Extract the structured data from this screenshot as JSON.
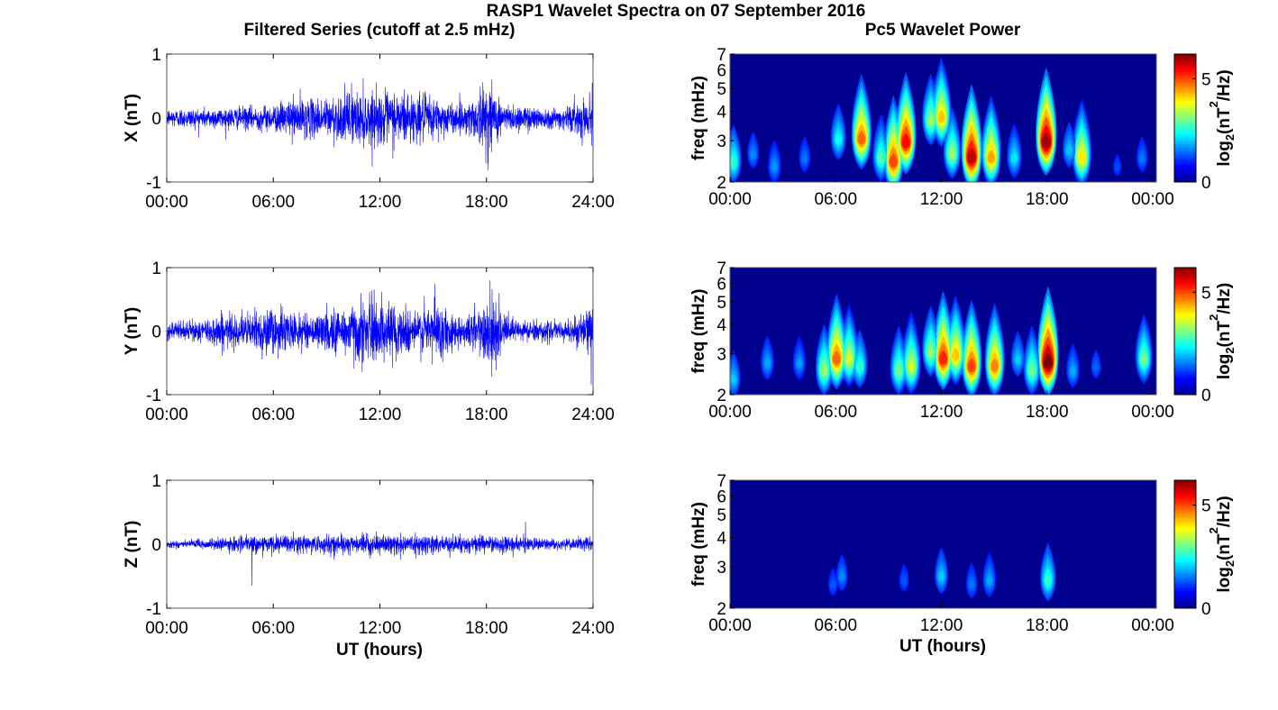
{
  "figure": {
    "title": "RASP1 Wavelet Spectra on 07 September 2016",
    "left_title": "Filtered Series (cutoff at 2.5 mHz)",
    "right_title": "Pc5 Wavelet Power",
    "xlabel": "UT (hours)"
  },
  "colors": {
    "series_line": "#0000ff",
    "spectrogram_background": "#00008f",
    "colormap": "jet"
  },
  "chart_data": [
    {
      "type": "line",
      "component": "X",
      "ylabel": "X (nT)",
      "xlim": [
        0,
        24
      ],
      "ylim": [
        -1,
        1
      ],
      "xticks": [
        "00:00",
        "06:00",
        "12:00",
        "18:00",
        "24:00"
      ],
      "yticks": [
        "-1",
        "0",
        "1"
      ],
      "envelope_hours": [
        0,
        2,
        4,
        6,
        7.5,
        8,
        9,
        10,
        11,
        12,
        13,
        14,
        15,
        16,
        17,
        18,
        19,
        20,
        22,
        24
      ],
      "envelope_nT": [
        0.13,
        0.14,
        0.15,
        0.18,
        0.3,
        0.25,
        0.28,
        0.33,
        0.38,
        0.34,
        0.4,
        0.33,
        0.3,
        0.2,
        0.22,
        0.5,
        0.2,
        0.18,
        0.13,
        0.3
      ],
      "peaks": [
        {
          "t": 10.4,
          "y": 0.55
        },
        {
          "t": 12.2,
          "y": -0.42
        },
        {
          "t": 18.3,
          "y": 0.6
        },
        {
          "t": 18.1,
          "y": -0.5
        },
        {
          "t": 23.95,
          "y": 0.55
        }
      ]
    },
    {
      "type": "line",
      "component": "Y",
      "ylabel": "Y (nT)",
      "xlim": [
        0,
        24
      ],
      "ylim": [
        -1,
        1
      ],
      "xticks": [
        "00:00",
        "06:00",
        "12:00",
        "18:00",
        "24:00"
      ],
      "yticks": [
        "-1",
        "0",
        "1"
      ],
      "envelope_hours": [
        0,
        2,
        3,
        4,
        5,
        6,
        7,
        8,
        9,
        10,
        11,
        12,
        13,
        14,
        15,
        16,
        17,
        18,
        19,
        20,
        22,
        24
      ],
      "envelope_nT": [
        0.12,
        0.15,
        0.25,
        0.2,
        0.28,
        0.35,
        0.25,
        0.2,
        0.28,
        0.35,
        0.45,
        0.4,
        0.35,
        0.3,
        0.42,
        0.25,
        0.22,
        0.5,
        0.22,
        0.16,
        0.12,
        0.3
      ],
      "peaks": [
        {
          "t": 12.1,
          "y": 0.62
        },
        {
          "t": 15.1,
          "y": 0.75
        },
        {
          "t": 18.2,
          "y": 0.8
        },
        {
          "t": 18.3,
          "y": -0.72
        },
        {
          "t": 23.9,
          "y": -0.85
        }
      ]
    },
    {
      "type": "line",
      "component": "Z",
      "ylabel": "Z (nT)",
      "xlim": [
        0,
        24
      ],
      "ylim": [
        -1,
        1
      ],
      "xticks": [
        "00:00",
        "06:00",
        "12:00",
        "18:00",
        "24:00"
      ],
      "yticks": [
        "-1",
        "0",
        "1"
      ],
      "envelope_hours": [
        0,
        2,
        4,
        6,
        8,
        10,
        12,
        14,
        16,
        18,
        20,
        22,
        24
      ],
      "envelope_nT": [
        0.05,
        0.07,
        0.1,
        0.12,
        0.12,
        0.13,
        0.12,
        0.13,
        0.12,
        0.12,
        0.1,
        0.07,
        0.1
      ],
      "peaks": [
        {
          "t": 4.8,
          "y": -0.65
        },
        {
          "t": 20.2,
          "y": 0.35
        },
        {
          "t": 24.0,
          "y": -0.12
        }
      ]
    },
    {
      "type": "heatmap",
      "component": "X",
      "ylabel": "freq (mHz)",
      "colorbar_label": "log2(nT2/Hz)",
      "xlim": [
        0,
        24
      ],
      "ylim": [
        2,
        7
      ],
      "yscale": "log",
      "clim": [
        0,
        6.2
      ],
      "xticks": [
        "00:00",
        "06:00",
        "12:00",
        "18:00",
        "00:00"
      ],
      "yticks": [
        "2",
        "3",
        "4",
        "5",
        "6",
        "7"
      ],
      "cbar_ticks": [
        "0",
        "5"
      ],
      "blobs": [
        {
          "t": 0.2,
          "f": 2.4,
          "p": 2.6
        },
        {
          "t": 1.3,
          "f": 2.6,
          "p": 1.6
        },
        {
          "t": 2.5,
          "f": 2.3,
          "p": 1.7
        },
        {
          "t": 4.2,
          "f": 2.5,
          "p": 1.5
        },
        {
          "t": 6.1,
          "f": 3.0,
          "p": 2.4
        },
        {
          "t": 7.4,
          "f": 3.0,
          "p": 4.8
        },
        {
          "t": 8.5,
          "f": 2.5,
          "p": 2.8
        },
        {
          "t": 9.2,
          "f": 2.4,
          "p": 5.0
        },
        {
          "t": 9.9,
          "f": 2.9,
          "p": 5.4
        },
        {
          "t": 11.3,
          "f": 3.6,
          "p": 3.2
        },
        {
          "t": 11.9,
          "f": 3.7,
          "p": 4.2
        },
        {
          "t": 12.5,
          "f": 2.6,
          "p": 3.2
        },
        {
          "t": 13.6,
          "f": 2.5,
          "p": 5.8
        },
        {
          "t": 14.7,
          "f": 2.5,
          "p": 4.4
        },
        {
          "t": 16.0,
          "f": 2.5,
          "p": 2.2
        },
        {
          "t": 17.8,
          "f": 2.9,
          "p": 6.0
        },
        {
          "t": 19.1,
          "f": 2.7,
          "p": 2.0
        },
        {
          "t": 19.8,
          "f": 2.5,
          "p": 4.0
        },
        {
          "t": 21.8,
          "f": 2.3,
          "p": 1.2
        },
        {
          "t": 23.2,
          "f": 2.5,
          "p": 1.5
        }
      ]
    },
    {
      "type": "heatmap",
      "component": "Y",
      "ylabel": "freq (mHz)",
      "colorbar_label": "log2(nT2/Hz)",
      "xlim": [
        0,
        24
      ],
      "ylim": [
        2,
        7
      ],
      "yscale": "log",
      "clim": [
        0,
        6.2
      ],
      "xticks": [
        "00:00",
        "06:00",
        "12:00",
        "18:00",
        "00:00"
      ],
      "yticks": [
        "2",
        "3",
        "4",
        "5",
        "6",
        "7"
      ],
      "cbar_ticks": [
        "0",
        "5"
      ],
      "blobs": [
        {
          "t": 0.2,
          "f": 2.3,
          "p": 2.0
        },
        {
          "t": 2.1,
          "f": 2.7,
          "p": 1.8
        },
        {
          "t": 3.9,
          "f": 2.7,
          "p": 1.7
        },
        {
          "t": 5.3,
          "f": 2.5,
          "p": 3.2
        },
        {
          "t": 6.0,
          "f": 2.8,
          "p": 4.8
        },
        {
          "t": 6.7,
          "f": 2.8,
          "p": 3.6
        },
        {
          "t": 7.3,
          "f": 2.6,
          "p": 2.6
        },
        {
          "t": 9.5,
          "f": 2.5,
          "p": 3.0
        },
        {
          "t": 10.2,
          "f": 2.6,
          "p": 3.6
        },
        {
          "t": 11.3,
          "f": 3.0,
          "p": 3.2
        },
        {
          "t": 12.0,
          "f": 2.8,
          "p": 5.2
        },
        {
          "t": 12.7,
          "f": 2.9,
          "p": 4.2
        },
        {
          "t": 13.6,
          "f": 2.6,
          "p": 5.0
        },
        {
          "t": 14.9,
          "f": 2.6,
          "p": 4.6
        },
        {
          "t": 16.2,
          "f": 2.8,
          "p": 2.0
        },
        {
          "t": 17.0,
          "f": 2.5,
          "p": 3.0
        },
        {
          "t": 17.9,
          "f": 2.7,
          "p": 6.2
        },
        {
          "t": 19.3,
          "f": 2.5,
          "p": 1.8
        },
        {
          "t": 20.6,
          "f": 2.6,
          "p": 1.4
        },
        {
          "t": 23.3,
          "f": 2.8,
          "p": 3.0
        }
      ]
    },
    {
      "type": "heatmap",
      "component": "Z",
      "ylabel": "freq (mHz)",
      "colorbar_label": "log2(nT2/Hz)",
      "xlim": [
        0,
        24
      ],
      "ylim": [
        2,
        7
      ],
      "yscale": "log",
      "clim": [
        0,
        6.2
      ],
      "xticks": [
        "00:00",
        "06:00",
        "12:00",
        "18:00",
        "00:00"
      ],
      "yticks": [
        "2",
        "3",
        "4",
        "5",
        "6",
        "7"
      ],
      "cbar_ticks": [
        "0",
        "5"
      ],
      "blobs": [
        {
          "t": 5.8,
          "f": 2.5,
          "p": 1.3
        },
        {
          "t": 6.3,
          "f": 2.7,
          "p": 1.6
        },
        {
          "t": 9.8,
          "f": 2.6,
          "p": 1.3
        },
        {
          "t": 11.9,
          "f": 2.7,
          "p": 2.0
        },
        {
          "t": 13.6,
          "f": 2.5,
          "p": 1.5
        },
        {
          "t": 14.6,
          "f": 2.6,
          "p": 1.8
        },
        {
          "t": 17.9,
          "f": 2.6,
          "p": 2.6
        }
      ]
    }
  ]
}
